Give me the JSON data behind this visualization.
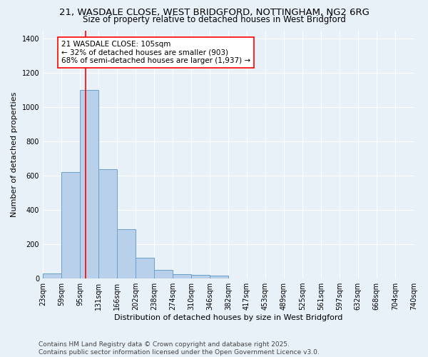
{
  "title1": "21, WASDALE CLOSE, WEST BRIDGFORD, NOTTINGHAM, NG2 6RG",
  "title2": "Size of property relative to detached houses in West Bridgford",
  "xlabel": "Distribution of detached houses by size in West Bridgford",
  "ylabel": "Number of detached properties",
  "bar_edges": [
    23,
    59,
    95,
    131,
    166,
    202,
    238,
    274,
    310,
    346,
    382,
    417,
    453,
    489,
    525,
    561,
    597,
    632,
    668,
    704,
    740
  ],
  "bar_heights": [
    30,
    620,
    1100,
    640,
    290,
    120,
    50,
    25,
    20,
    15,
    0,
    0,
    0,
    0,
    0,
    0,
    0,
    0,
    0,
    0
  ],
  "bar_color": "#b8d0ea",
  "bar_edge_color": "#6aa0cc",
  "bg_color": "#e8f0f8",
  "grid_color": "#ffffff",
  "vline_x": 105,
  "vline_color": "red",
  "annotation_text": "21 WASDALE CLOSE: 105sqm\n← 32% of detached houses are smaller (903)\n68% of semi-detached houses are larger (1,937) →",
  "annotation_box_color": "white",
  "annotation_box_edge": "red",
  "ylim": [
    0,
    1450
  ],
  "yticks": [
    0,
    200,
    400,
    600,
    800,
    1000,
    1200,
    1400
  ],
  "xtick_labels": [
    "23sqm",
    "59sqm",
    "95sqm",
    "131sqm",
    "166sqm",
    "202sqm",
    "238sqm",
    "274sqm",
    "310sqm",
    "346sqm",
    "382sqm",
    "417sqm",
    "453sqm",
    "489sqm",
    "525sqm",
    "561sqm",
    "597sqm",
    "632sqm",
    "668sqm",
    "704sqm",
    "740sqm"
  ],
  "footnote": "Contains HM Land Registry data © Crown copyright and database right 2025.\nContains public sector information licensed under the Open Government Licence v3.0.",
  "title_fontsize": 9.5,
  "subtitle_fontsize": 8.5,
  "axis_label_fontsize": 8,
  "tick_fontsize": 7,
  "annotation_fontsize": 7.5,
  "footnote_fontsize": 6.5
}
